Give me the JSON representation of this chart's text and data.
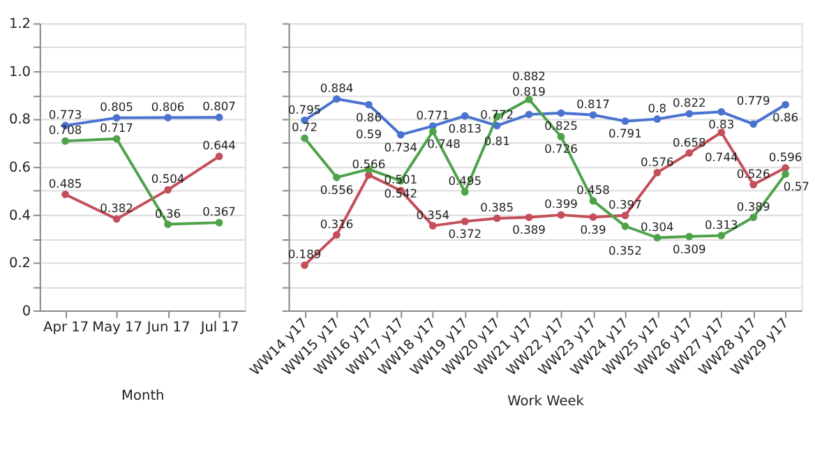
{
  "chart_data": [
    {
      "type": "line",
      "xlabel": "Month",
      "categories": [
        "Apr 17",
        "May 17",
        "Jun 17",
        "Jul 17"
      ],
      "ylim": [
        0,
        1.2
      ],
      "yticks": [
        0,
        {
          "value": 0.1,
          "label": null
        },
        {
          "value": 0.2,
          "label": "0.2"
        },
        {
          "value": 0.3,
          "label": null
        },
        {
          "value": 0.4,
          "label": "0.4"
        },
        {
          "value": 0.5,
          "label": null
        },
        {
          "value": 0.6,
          "label": "0.6"
        },
        {
          "value": 0.7,
          "label": null
        },
        {
          "value": 0.8,
          "label": "0.8"
        },
        {
          "value": 0.9,
          "label": null
        },
        {
          "value": 1.0,
          "label": "1.0"
        },
        {
          "value": 1.1,
          "label": null
        },
        {
          "value": 1.2,
          "label": "1.2"
        }
      ],
      "grid": "y",
      "marker": "circle",
      "line_style": "solid",
      "data_labels": true,
      "series": [
        {
          "color": "#4a72d0",
          "values": [
            0.773,
            0.805,
            0.806,
            0.807
          ]
        },
        {
          "color": "#c44f5a",
          "values": [
            0.485,
            0.382,
            0.504,
            0.644
          ]
        },
        {
          "color": "#4ea24a",
          "values": [
            0.708,
            0.717,
            0.36,
            0.367
          ]
        }
      ]
    },
    {
      "type": "line",
      "xlabel": "Work Week",
      "categories": [
        "WW14 y17",
        "WW15 y17",
        "WW16 y17",
        "WW17 y17",
        "WW18 y17",
        "WW19 y17",
        "WW20 y17",
        "WW21 y17",
        "WW22 y17",
        "WW23 y17",
        "WW24 y17",
        "WW25 y17",
        "WW26 y17",
        "WW27 y17",
        "WW28 y17",
        "WW29 y17"
      ],
      "ylim": [
        0,
        1.2
      ],
      "yticks": [
        {
          "value": 0,
          "label": null
        },
        {
          "value": 0.1,
          "label": null
        },
        {
          "value": 0.2,
          "label": null
        },
        {
          "value": 0.3,
          "label": null
        },
        {
          "value": 0.4,
          "label": null
        },
        {
          "value": 0.5,
          "label": null
        },
        {
          "value": 0.6,
          "label": null
        },
        {
          "value": 0.7,
          "label": null
        },
        {
          "value": 0.8,
          "label": null
        },
        {
          "value": 0.9,
          "label": null
        },
        {
          "value": 1.0,
          "label": null
        },
        {
          "value": 1.1,
          "label": null
        },
        {
          "value": 1.2,
          "label": null
        }
      ],
      "tick_labels": "x",
      "grid": "y",
      "marker": "circle",
      "line_style": "solid",
      "data_labels": true,
      "series": [
        {
          "color": "#4a72d0",
          "values": [
            0.795,
            0.884,
            0.86,
            0.734,
            0.771,
            0.813,
            0.772,
            0.819,
            0.825,
            0.817,
            0.791,
            0.8,
            0.822,
            0.83,
            0.779,
            0.86
          ]
        },
        {
          "color": "#c44f5a",
          "values": [
            0.189,
            0.316,
            0.566,
            0.501,
            0.354,
            0.372,
            0.385,
            0.389,
            0.399,
            0.39,
            0.397,
            0.576,
            0.658,
            0.744,
            0.526,
            0.596
          ]
        },
        {
          "color": "#4ea24a",
          "values": [
            0.72,
            0.556,
            0.59,
            0.542,
            0.748,
            0.495,
            0.81,
            0.882,
            0.726,
            0.458,
            0.352,
            0.304,
            0.309,
            0.313,
            0.389,
            0.57
          ]
        }
      ]
    }
  ]
}
